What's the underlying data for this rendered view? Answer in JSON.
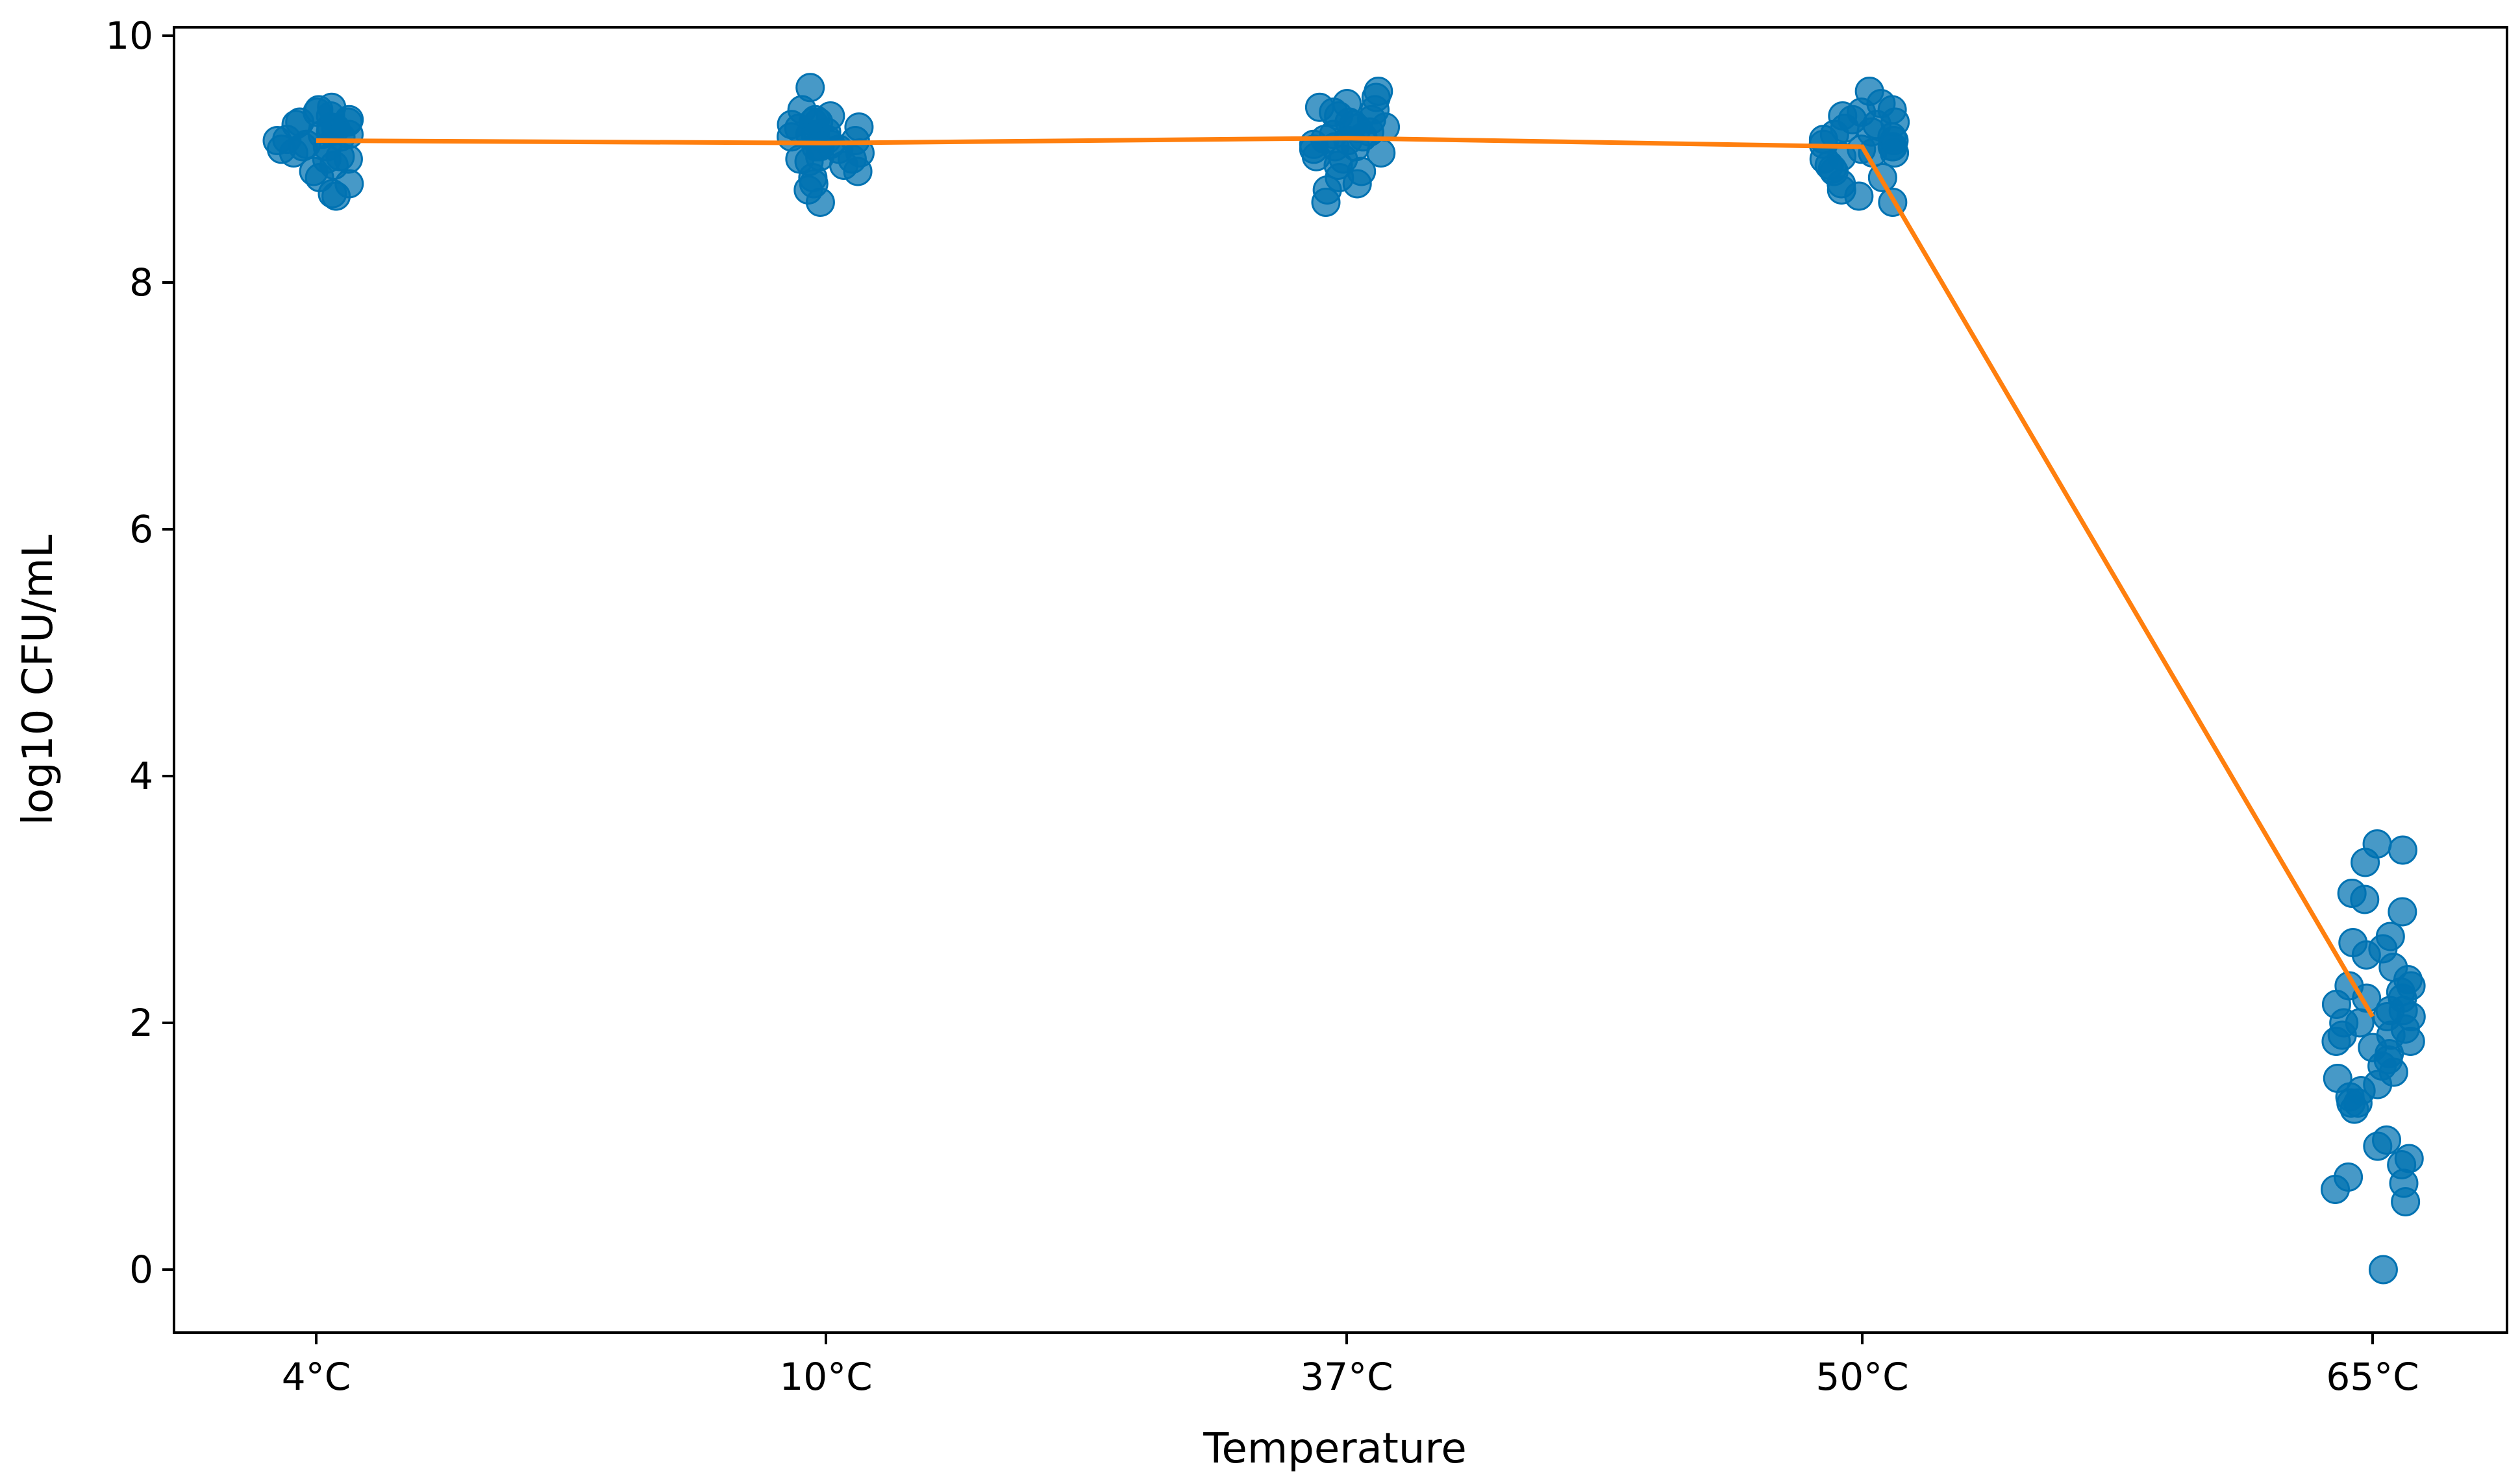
{
  "chart_data": {
    "type": "scatter",
    "title": "",
    "xlabel": "Temperature",
    "ylabel": "log10 CFU/mL",
    "categories": [
      "4°C",
      "10°C",
      "37°C",
      "50°C",
      "65°C"
    ],
    "ylim": [
      -0.5,
      10
    ],
    "yticks": [
      "0",
      "2",
      "4",
      "6",
      "8",
      "10"
    ],
    "grid": false,
    "legend": "none",
    "colors": {
      "points": "#0072b2",
      "mean_line": "#ff7f0e",
      "axes": "#000000"
    },
    "series": [
      {
        "kind": "jittered_points",
        "values": [
          [
            9.15,
            9.2,
            9.3,
            9.05,
            8.95,
            9.4,
            9.1,
            9.25,
            8.7,
            8.85,
            9.35,
            9.0,
            9.18,
            9.28,
            9.12,
            8.72,
            9.42,
            9.08,
            9.22,
            8.9,
            9.32,
            9.02,
            9.16,
            9.38,
            8.8,
            9.26,
            9.1,
            9.2,
            9.0,
            9.3
          ],
          [
            9.1,
            9.3,
            9.0,
            8.85,
            9.25,
            9.58,
            8.65,
            9.2,
            9.05,
            9.35,
            8.95,
            9.15,
            9.28,
            8.75,
            9.12,
            9.22,
            9.02,
            9.4,
            8.9,
            9.18,
            9.32,
            8.8,
            9.08,
            9.26,
            9.16,
            9.0,
            9.3,
            8.98,
            9.2,
            9.1
          ],
          [
            9.2,
            9.3,
            9.1,
            8.65,
            9.55,
            9.0,
            9.4,
            8.8,
            9.25,
            9.15,
            9.45,
            8.9,
            9.05,
            9.35,
            9.18,
            8.75,
            9.28,
            9.1,
            9.38,
            8.95,
            9.22,
            9.5,
            9.02,
            9.32,
            9.12,
            8.85,
            9.42,
            9.08,
            9.26,
            9.16
          ],
          [
            9.05,
            9.2,
            8.7,
            9.55,
            8.9,
            9.3,
            9.4,
            8.65,
            9.1,
            9.15,
            8.85,
            9.25,
            9.0,
            9.35,
            8.95,
            9.12,
            9.22,
            8.8,
            9.45,
            9.08,
            9.28,
            9.02,
            9.18,
            8.75,
            9.32,
            9.1,
            8.92,
            9.38,
            9.16,
            9.05
          ],
          [
            0.0,
            0.55,
            0.65,
            0.7,
            0.75,
            0.9,
            1.0,
            1.05,
            1.3,
            1.35,
            1.4,
            1.5,
            1.55,
            1.6,
            1.7,
            1.75,
            1.8,
            1.85,
            1.9,
            1.95,
            2.0,
            2.05,
            2.1,
            2.15,
            2.2,
            2.25,
            2.3,
            2.35,
            2.45,
            2.55,
            2.65,
            2.7,
            2.9,
            3.0,
            3.05,
            3.3,
            3.4,
            3.45,
            1.45,
            1.65,
            1.9,
            2.0,
            2.1,
            2.2,
            2.3,
            1.35,
            1.85,
            2.05,
            2.6,
            0.85
          ]
        ]
      },
      {
        "kind": "mean_line",
        "values": [
          9.15,
          9.13,
          9.17,
          9.1,
          2.05
        ]
      }
    ]
  }
}
